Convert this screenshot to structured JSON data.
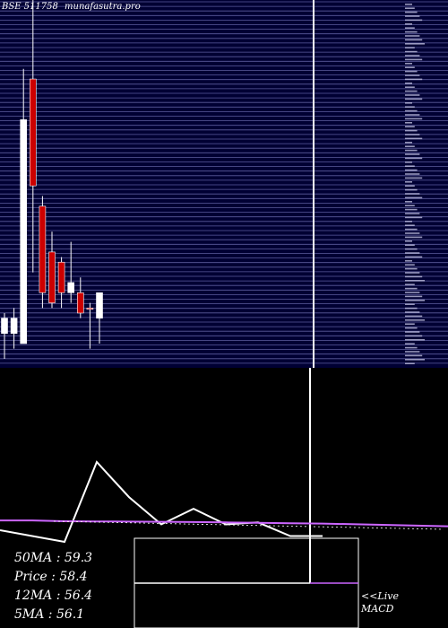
{
  "header": {
    "symbol": "BSE 511758",
    "site": "munafasutra.pro"
  },
  "stats": [
    {
      "label": "50MA",
      "value": "59.3"
    },
    {
      "label": "Price  ",
      "value": "58.4"
    },
    {
      "label": "12MA",
      "value": "56.4"
    },
    {
      "label": "5MA",
      "value": "56.1"
    }
  ],
  "footer": {
    "live_label": "<<Live",
    "macd_label": "MACD"
  },
  "colors": {
    "panel_bg": "#000033",
    "grid": "#5c5c9c",
    "up": "#ffffff",
    "down": "#cc0000",
    "ma_line": "#cc66ff",
    "indicator_line": "#ffffff"
  },
  "chart_data": [
    {
      "type": "candlestick",
      "title": "",
      "xlabel": "",
      "ylabel": "",
      "ylim": [
        43,
        110
      ],
      "grid": true,
      "candles": [
        {
          "open": 48,
          "high": 52,
          "low": 43,
          "close": 51,
          "color": "up"
        },
        {
          "open": 48,
          "high": 53,
          "low": 45,
          "close": 51,
          "color": "up"
        },
        {
          "open": 46,
          "high": 100,
          "low": 46,
          "close": 90,
          "color": "up"
        },
        {
          "open": 98,
          "high": 118,
          "low": 60,
          "close": 77,
          "color": "down"
        },
        {
          "open": 73,
          "high": 75,
          "low": 53,
          "close": 56,
          "color": "down"
        },
        {
          "open": 64,
          "high": 68,
          "low": 53,
          "close": 54,
          "color": "down"
        },
        {
          "open": 62,
          "high": 63,
          "low": 53,
          "close": 56,
          "color": "down"
        },
        {
          "open": 56,
          "high": 66,
          "low": 54,
          "close": 58,
          "color": "up"
        },
        {
          "open": 56,
          "high": 59,
          "low": 51,
          "close": 52,
          "color": "down"
        },
        {
          "open": 53,
          "high": 54,
          "low": 45,
          "close": 53,
          "color": "down"
        },
        {
          "open": 51,
          "high": 56,
          "low": 46,
          "close": 56,
          "color": "up"
        }
      ]
    },
    {
      "type": "line",
      "title": "",
      "xlabel": "",
      "ylabel": "",
      "grid": false,
      "series": [
        {
          "values": [
            53,
            50,
            47,
            88,
            70,
            56,
            64,
            56,
            57,
            50,
            50
          ]
        },
        {
          "values": [
            58,
            58,
            57.6,
            57.5,
            57.4,
            57.3,
            57.2,
            57,
            56.8,
            56.6,
            56.4
          ]
        }
      ]
    }
  ]
}
